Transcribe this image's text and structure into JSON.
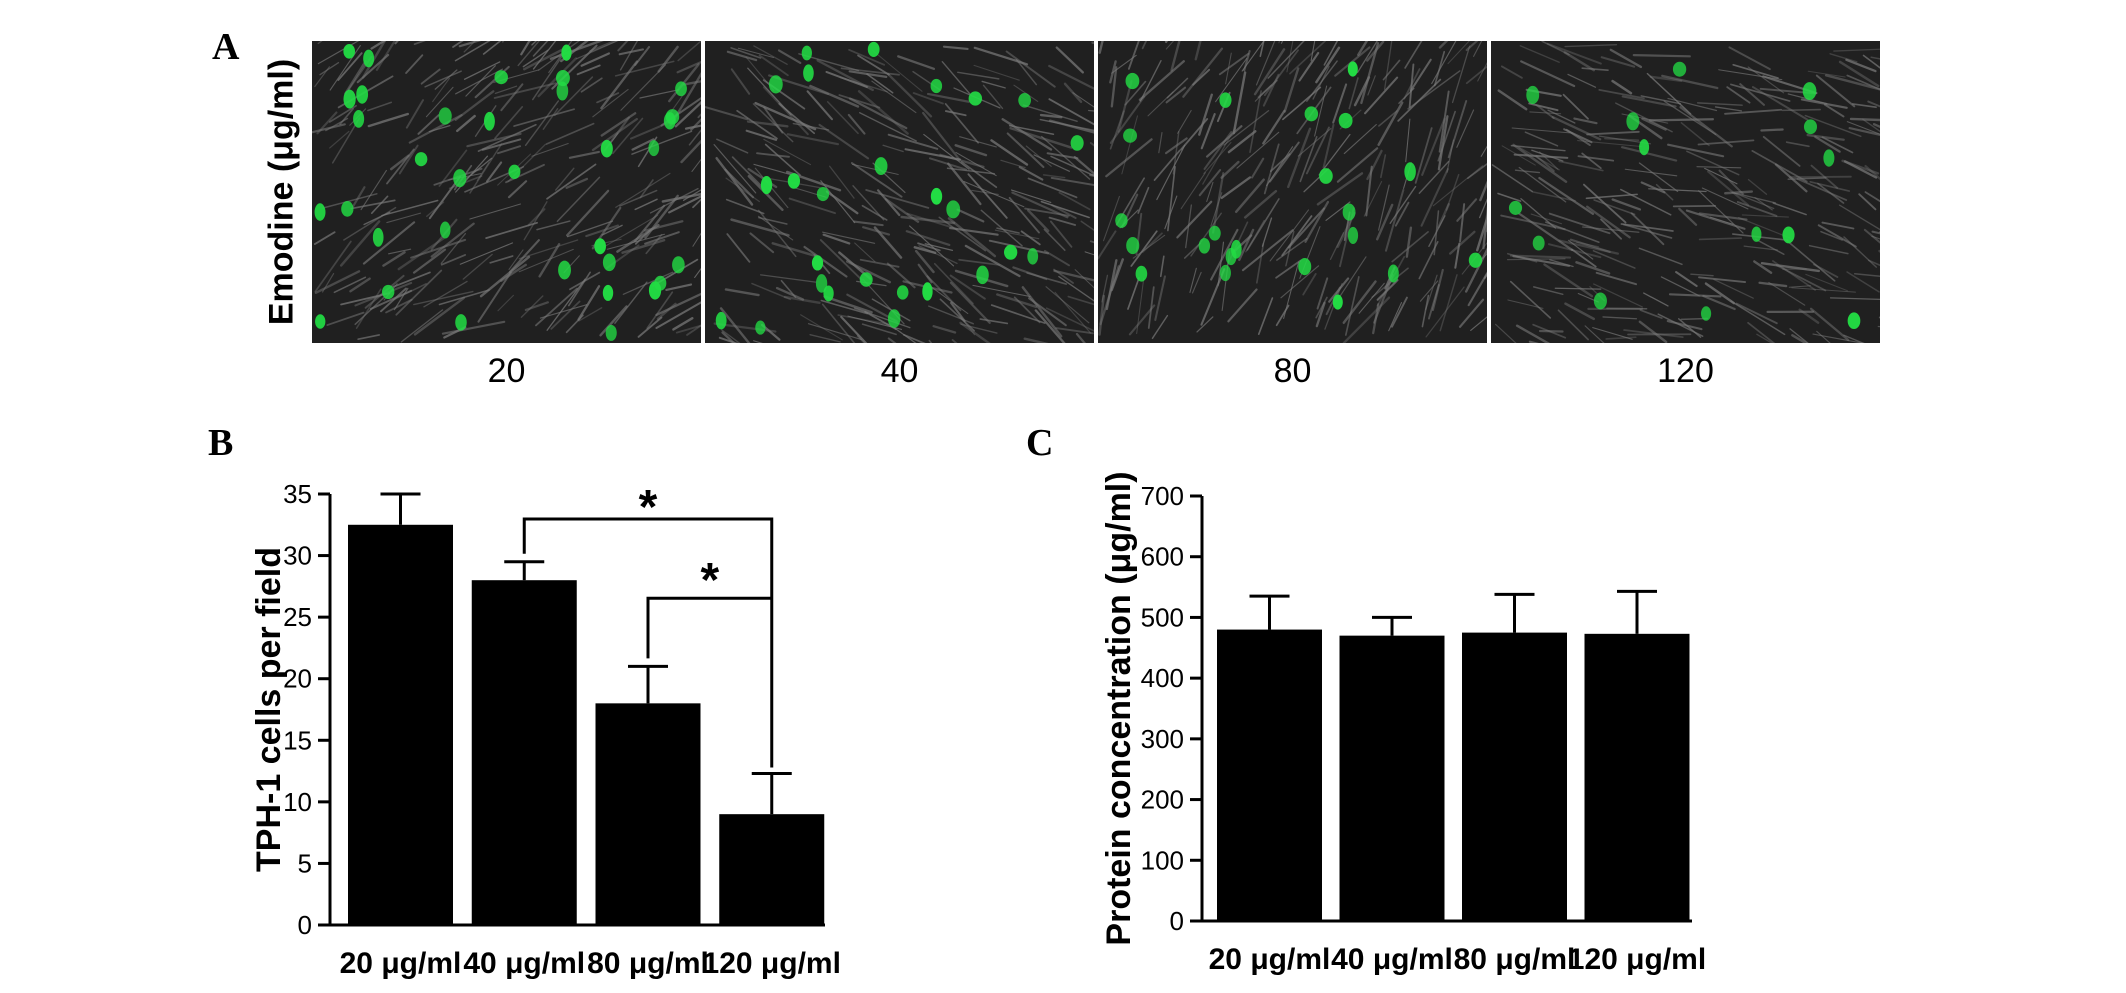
{
  "panels": {
    "a": {
      "letter": "A"
    },
    "b": {
      "letter": "B"
    },
    "c": {
      "letter": "C"
    }
  },
  "micrographs": {
    "ylabel": "Emodine (μg/ml)",
    "concentrations": [
      "20",
      "40",
      "80",
      "120"
    ],
    "colors": {
      "background": "#202020",
      "nuclei": "#22dd44",
      "fibers": "#7a7a7a"
    }
  },
  "chart_data": [
    {
      "type": "bar",
      "panel": "B",
      "categories": [
        "20 μg/ml",
        "40 μg/ml",
        "80 μg/ml",
        "120 μg/ml"
      ],
      "values": [
        32.5,
        28,
        18,
        9
      ],
      "errors": [
        2.5,
        1.5,
        3,
        3.3
      ],
      "ylabel": "TPH-1 cells per field",
      "xlabel": "",
      "ylim": [
        0,
        35
      ],
      "yticks": [
        0,
        5,
        10,
        15,
        20,
        25,
        30,
        35
      ],
      "grid": false,
      "bar_color": "#000000",
      "significance": [
        {
          "from": 1,
          "to": 3,
          "label": "*"
        },
        {
          "from": 2,
          "to": 3,
          "label": "*"
        }
      ]
    },
    {
      "type": "bar",
      "panel": "C",
      "categories": [
        "20 μg/ml",
        "40 μg/ml",
        "80 μg/ml",
        "120 μg/ml"
      ],
      "values": [
        480,
        470,
        475,
        473
      ],
      "errors": [
        55,
        30,
        63,
        70
      ],
      "ylabel": "Protein concentration (μg/ml)",
      "xlabel": "",
      "ylim": [
        0,
        700
      ],
      "yticks": [
        0,
        100,
        200,
        300,
        400,
        500,
        600,
        700
      ],
      "grid": false,
      "bar_color": "#000000"
    }
  ]
}
